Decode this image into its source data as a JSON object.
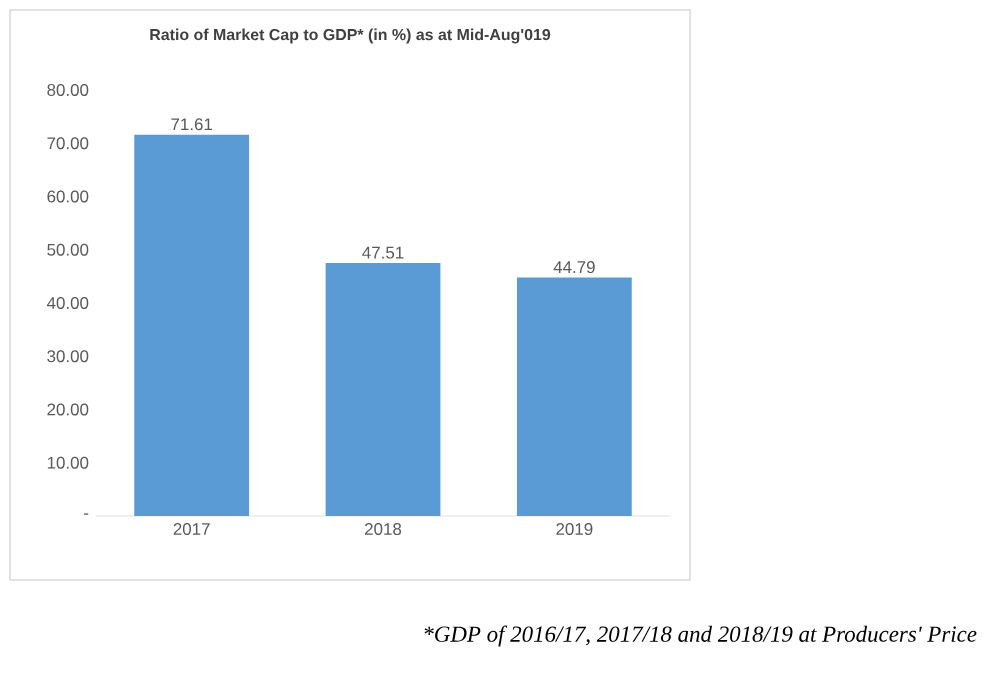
{
  "chart_data": {
    "type": "bar",
    "title": "Ratio of  Market Cap to GDP* (in %) as at Mid-Aug'019",
    "categories": [
      "2017",
      "2018",
      "2019"
    ],
    "values": [
      71.61,
      47.51,
      44.79
    ],
    "color": "#5b9bd5",
    "ylim": [
      0,
      80
    ],
    "yticks": [
      {
        "value": 0,
        "label": "-"
      },
      {
        "value": 10,
        "label": "10.00"
      },
      {
        "value": 20,
        "label": "20.00"
      },
      {
        "value": 30,
        "label": "30.00"
      },
      {
        "value": 40,
        "label": "40.00"
      },
      {
        "value": 50,
        "label": "50.00"
      },
      {
        "value": 60,
        "label": "60.00"
      },
      {
        "value": 70,
        "label": "70.00"
      },
      {
        "value": 80,
        "label": "80.00"
      }
    ],
    "data_labels": true,
    "annotations": [
      "*GDP of 2016/17, 2017/18 and 2018/19 at Producers' Price"
    ]
  }
}
